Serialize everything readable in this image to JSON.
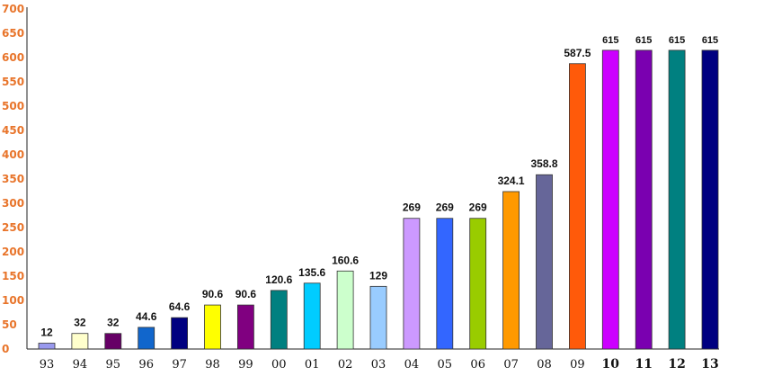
{
  "chart_data": {
    "type": "bar",
    "categories": [
      "93",
      "94",
      "95",
      "96",
      "97",
      "98",
      "99",
      "00",
      "01",
      "02",
      "03",
      "04",
      "05",
      "06",
      "07",
      "08",
      "09",
      "10",
      "11",
      "12",
      "13"
    ],
    "values": [
      12,
      32,
      32,
      44.6,
      64.6,
      90.6,
      90.6,
      120.6,
      135.6,
      160.6,
      129,
      269,
      269,
      269,
      324.1,
      358.8,
      587.5,
      615,
      615,
      615,
      615
    ],
    "data_labels": [
      "12",
      "32",
      "32",
      "44.6",
      "64.6",
      "90.6",
      "90.6",
      "120.6",
      "135.6",
      "160.6",
      "129",
      "269",
      "269",
      "269",
      "324.1",
      "358.8",
      "587.5",
      "615",
      "615",
      "615",
      "615"
    ],
    "bold_categories": [
      "10",
      "11",
      "12",
      "13"
    ],
    "colors": [
      "#9999ee",
      "#ffffcc",
      "#660066",
      "#1166cc",
      "#000080",
      "#ffff00",
      "#800080",
      "#008080",
      "#00ccff",
      "#ccffcc",
      "#99ccff",
      "#cc99ff",
      "#3366ff",
      "#99cc00",
      "#ff9900",
      "#666699",
      "#ff5a0a",
      "#cc00ff",
      "#7a00b0",
      "#008080",
      "#000080"
    ],
    "yticks": [
      0,
      50,
      100,
      150,
      200,
      250,
      300,
      350,
      400,
      450,
      500,
      550,
      600,
      650,
      700
    ],
    "ylim": [
      0,
      700
    ],
    "title": "",
    "xlabel": "",
    "ylabel": "",
    "grid": false,
    "legend": "none"
  }
}
